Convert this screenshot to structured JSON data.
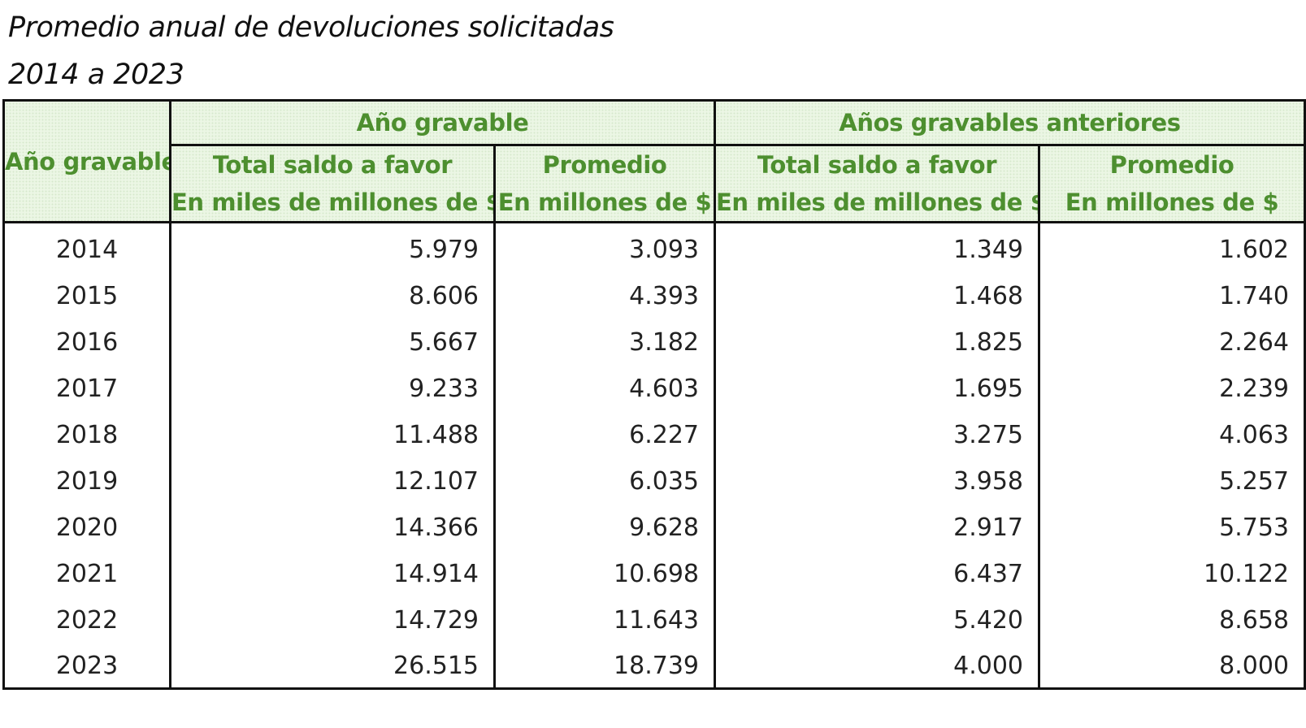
{
  "title": "Promedio anual de devoluciones solicitadas",
  "subtitle": "2014 a 2023",
  "header": {
    "year_col": "Año gravable",
    "group1": "Año gravable",
    "group2": "Años gravables anteriores",
    "total_label": "Total saldo a favor",
    "total_unit": "En miles de millones de $",
    "avg_label": "Promedio",
    "avg_unit": "En millones de $"
  },
  "rows": [
    {
      "year": "2014",
      "t1": "5.979",
      "p1": "3.093",
      "t2": "1.349",
      "p2": "1.602"
    },
    {
      "year": "2015",
      "t1": "8.606",
      "p1": "4.393",
      "t2": "1.468",
      "p2": "1.740"
    },
    {
      "year": "2016",
      "t1": "5.667",
      "p1": "3.182",
      "t2": "1.825",
      "p2": "2.264"
    },
    {
      "year": "2017",
      "t1": "9.233",
      "p1": "4.603",
      "t2": "1.695",
      "p2": "2.239"
    },
    {
      "year": "2018",
      "t1": "11.488",
      "p1": "6.227",
      "t2": "3.275",
      "p2": "4.063"
    },
    {
      "year": "2019",
      "t1": "12.107",
      "p1": "6.035",
      "t2": "3.958",
      "p2": "5.257"
    },
    {
      "year": "2020",
      "t1": "14.366",
      "p1": "9.628",
      "t2": "2.917",
      "p2": "5.753"
    },
    {
      "year": "2021",
      "t1": "14.914",
      "p1": "10.698",
      "t2": "6.437",
      "p2": "10.122"
    },
    {
      "year": "2022",
      "t1": "14.729",
      "p1": "11.643",
      "t2": "5.420",
      "p2": "8.658"
    },
    {
      "year": "2023",
      "t1": "26.515",
      "p1": "18.739",
      "t2": "4.000",
      "p2": "8.000"
    }
  ]
}
